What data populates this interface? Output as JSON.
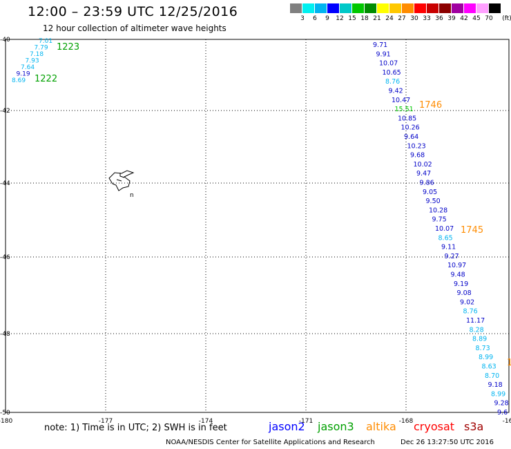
{
  "header": {
    "title": "12:00 – 23:59 UTC 12/25/2016",
    "subtitle": "12 hour collection of altimeter wave heights"
  },
  "legend": {
    "unit": "(ft)",
    "labels": [
      "3",
      "6",
      "9",
      "12",
      "15",
      "18",
      "21",
      "24",
      "27",
      "30",
      "33",
      "36",
      "39",
      "42",
      "45",
      "70"
    ],
    "colors": [
      "#808080",
      "#00f0f0",
      "#00b4f0",
      "#0000ff",
      "#00c8c8",
      "#00c800",
      "#008c00",
      "#ffff00",
      "#ffc800",
      "#ff8c00",
      "#ff0000",
      "#c80000",
      "#8c0000",
      "#a000a0",
      "#ff00ff",
      "#ffa0ff",
      "#000000"
    ]
  },
  "map": {
    "lon_ticks": [
      "-180",
      "-177",
      "-174",
      "-171",
      "-168",
      "-16"
    ],
    "lat_ticks": [
      "-40",
      "-42",
      "-44",
      "-46",
      "-48",
      "-50"
    ],
    "island_label": "n"
  },
  "tracks": [
    {
      "time": "1223",
      "time_color": "#00a000",
      "readings": [
        {
          "v": "7.01",
          "c": "#00b4f0"
        },
        {
          "v": "7.79",
          "c": "#00b4f0"
        },
        {
          "v": "7.18",
          "c": "#00b4f0"
        },
        {
          "v": "7.93",
          "c": "#00b4f0"
        },
        {
          "v": "7.64",
          "c": "#00b4f0"
        },
        {
          "v": "9.19",
          "c": "#0000c8"
        },
        {
          "v": "8.69",
          "c": "#00b4f0"
        }
      ]
    },
    {
      "time": "1222",
      "time_color": "#00a000",
      "readings": []
    },
    {
      "time": "1746",
      "time_color": "#ff8c00",
      "readings": [
        {
          "v": "9.71",
          "c": "#0000c8"
        },
        {
          "v": "9.91",
          "c": "#0000c8"
        },
        {
          "v": "10.07",
          "c": "#0000c8"
        },
        {
          "v": "10.65",
          "c": "#0000c8"
        },
        {
          "v": "8.76",
          "c": "#00b4f0"
        },
        {
          "v": "9.42",
          "c": "#0000c8"
        },
        {
          "v": "10.47",
          "c": "#0000c8"
        },
        {
          "v": "15.51",
          "c": "#00c800"
        },
        {
          "v": "10.85",
          "c": "#0000c8"
        },
        {
          "v": "10.26",
          "c": "#0000c8"
        },
        {
          "v": "9.64",
          "c": "#0000c8"
        },
        {
          "v": "10.23",
          "c": "#0000c8"
        },
        {
          "v": "9.68",
          "c": "#0000c8"
        },
        {
          "v": "10.02",
          "c": "#0000c8"
        },
        {
          "v": "9.47",
          "c": "#0000c8"
        },
        {
          "v": "9.86",
          "c": "#0000c8"
        },
        {
          "v": "9.05",
          "c": "#0000c8"
        },
        {
          "v": "9.50",
          "c": "#0000c8"
        },
        {
          "v": "10.28",
          "c": "#0000c8"
        },
        {
          "v": "9.75",
          "c": "#0000c8"
        },
        {
          "v": "10.07",
          "c": "#0000c8"
        }
      ]
    },
    {
      "time": "1745",
      "time_color": "#ff8c00",
      "readings": [
        {
          "v": "8.65",
          "c": "#00b4f0"
        },
        {
          "v": "9.11",
          "c": "#0000c8"
        },
        {
          "v": "9.27",
          "c": "#0000c8"
        },
        {
          "v": "10.97",
          "c": "#0000c8"
        },
        {
          "v": "9.48",
          "c": "#0000c8"
        },
        {
          "v": "9.19",
          "c": "#0000c8"
        },
        {
          "v": "9.08",
          "c": "#0000c8"
        },
        {
          "v": "9.02",
          "c": "#0000c8"
        },
        {
          "v": "8.76",
          "c": "#00b4f0"
        },
        {
          "v": "11.17",
          "c": "#0000c8"
        },
        {
          "v": "8.28",
          "c": "#00b4f0"
        },
        {
          "v": "8.89",
          "c": "#00b4f0"
        },
        {
          "v": "8.73",
          "c": "#00b4f0"
        },
        {
          "v": "8.99",
          "c": "#00b4f0"
        },
        {
          "v": "8.63",
          "c": "#00b4f0"
        },
        {
          "v": "8.70",
          "c": "#00b4f0"
        },
        {
          "v": "9.18",
          "c": "#0000c8"
        },
        {
          "v": "8.99",
          "c": "#00b4f0"
        },
        {
          "v": "9.28",
          "c": "#0000c8"
        },
        {
          "v": "9.6",
          "c": "#0000c8"
        }
      ]
    },
    {
      "time": "1",
      "time_color": "#ff8c00",
      "readings": []
    }
  ],
  "footer": {
    "note": "note: 1) Time is in UTC; 2) SWH is in feet",
    "satellites": [
      {
        "name": "jason2",
        "color": "#0000ff"
      },
      {
        "name": "jason3",
        "color": "#00a000"
      },
      {
        "name": "altika",
        "color": "#ff8c00"
      },
      {
        "name": "cryosat",
        "color": "#ff0000"
      },
      {
        "name": "s3a",
        "color": "#a00000"
      }
    ],
    "credit": "NOAA/NESDIS Center for Satellite Applications and Research",
    "timestamp": "Dec 26 13:27:50 UTC 2016"
  }
}
